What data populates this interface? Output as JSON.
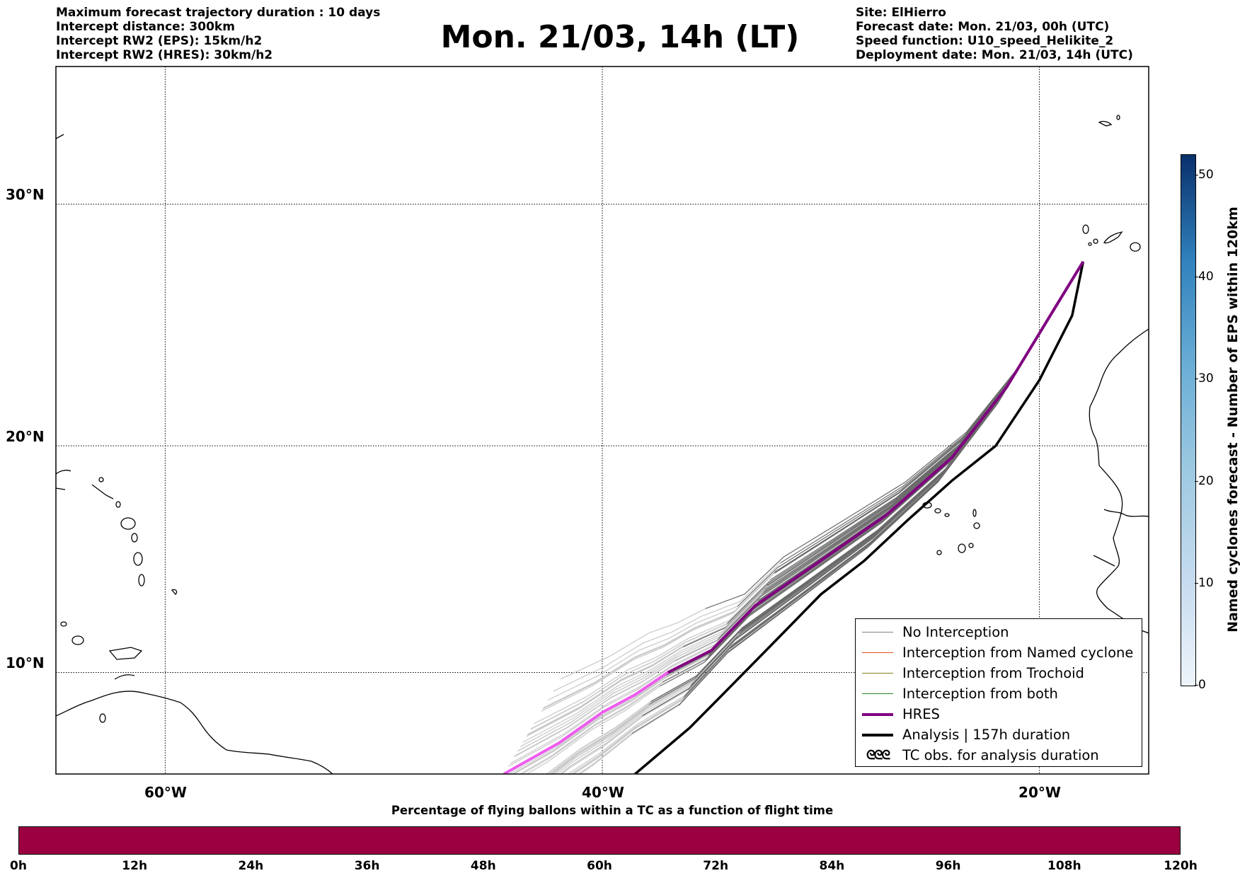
{
  "header_left": [
    "Maximum forecast trajectory duration : 10 days",
    "Intercept distance: 300km",
    "Intercept RW2 (EPS):  15km/h2",
    "Intercept RW2 (HRES): 30km/h2"
  ],
  "header_right": [
    "Site: ElHierro",
    "Forecast date: Mon. 21/03, 00h (UTC)",
    "Speed function: U10_speed_Helikite_2",
    "Deployment date: Mon. 21/03, 14h (UTC)"
  ],
  "title": "Mon. 21/03, 14h (LT)",
  "map": {
    "lat_labels": [
      "30°N",
      "20°N",
      "10°N"
    ],
    "lon_labels": [
      "60°W",
      "40°W",
      "20°W"
    ],
    "gridlines": true,
    "extent": {
      "lon_min": -65,
      "lon_max": -15,
      "lat_min": 5.4,
      "lat_max": 35.3
    }
  },
  "legend": {
    "placement": "lower-right",
    "items": [
      {
        "label": "No Interception",
        "color": "#808080",
        "kind": "thin"
      },
      {
        "label": "Interception from Named cyclone",
        "color": "#e8501a",
        "kind": "thin"
      },
      {
        "label": "Interception from Trochoid",
        "color": "#808020",
        "kind": "thin"
      },
      {
        "label": "Interception from both",
        "color": "#2a8a2a",
        "kind": "thin"
      },
      {
        "label": "HRES",
        "color": "#800080",
        "kind": "thick"
      },
      {
        "label": "Analysis | 157h duration",
        "color": "#000000",
        "kind": "thick"
      },
      {
        "label": "TC obs. for analysis duration",
        "symbol": "ᘓᘓᘓ",
        "kind": "symbol"
      }
    ]
  },
  "right_colorbar": {
    "label": "Named cyclones forecast - Number of EPS within 120km",
    "ticks": [
      "0",
      "10",
      "20",
      "30",
      "40",
      "50"
    ],
    "tick_values": [
      0,
      10,
      20,
      30,
      40,
      50
    ],
    "max": 52,
    "colors": [
      "#eef4fb",
      "#08306b"
    ]
  },
  "bottom_colorbar": {
    "title": "Percentage of flying ballons within a TC as a function of flight time",
    "ticks": [
      "0h",
      "12h",
      "24h",
      "36h",
      "48h",
      "60h",
      "72h",
      "84h",
      "96h",
      "108h",
      "120h"
    ],
    "color": "#9b0040"
  },
  "trajectories": {
    "site": {
      "lon": -18.0,
      "lat": 27.7
    },
    "analysis": [
      [
        -18.0,
        27.7
      ],
      [
        -18.5,
        25.5
      ],
      [
        -20,
        22.8
      ],
      [
        -22,
        20.0
      ],
      [
        -24,
        18.5
      ],
      [
        -26,
        16.8
      ],
      [
        -28,
        15.0
      ],
      [
        -30,
        13.5
      ],
      [
        -32,
        11.5
      ],
      [
        -34,
        9.5
      ],
      [
        -36,
        7.5
      ],
      [
        -38.5,
        5.4
      ]
    ],
    "hres": [
      [
        -18.0,
        27.7
      ],
      [
        -19.5,
        25.5
      ],
      [
        -21.5,
        22.5
      ],
      [
        -24,
        19.5
      ],
      [
        -27,
        17.0
      ],
      [
        -30,
        15.0
      ],
      [
        -33,
        13.0
      ],
      [
        -35,
        11.0
      ],
      [
        -37,
        10.0
      ],
      [
        -38.5,
        9.0
      ],
      [
        -40,
        8.2
      ],
      [
        -42,
        6.8
      ],
      [
        -44.5,
        5.4
      ]
    ]
  }
}
